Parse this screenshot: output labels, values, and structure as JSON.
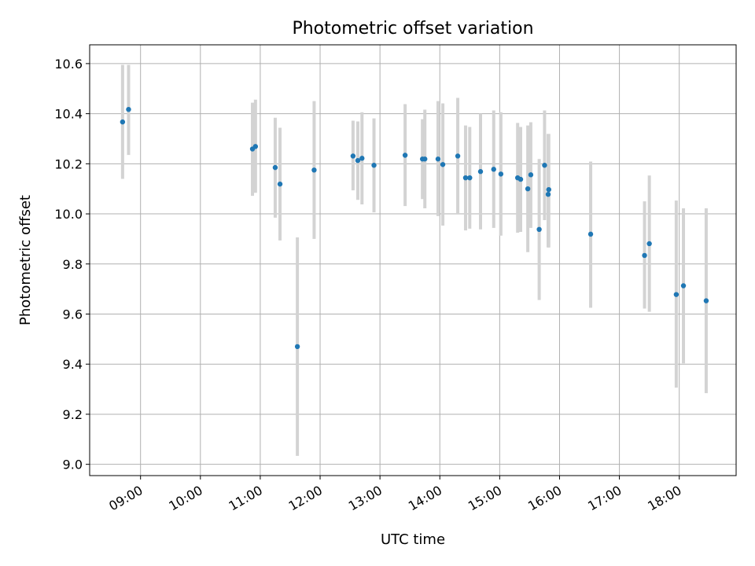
{
  "chart_data": {
    "type": "scatter",
    "title": "Photometric offset variation",
    "xlabel": "UTC time",
    "ylabel": "Photometric offset",
    "x_unit": "hours UTC",
    "xlim": [
      8.15,
      18.95
    ],
    "ylim": [
      8.955,
      10.675
    ],
    "x_ticks": [
      {
        "value": 9,
        "label": "09:00"
      },
      {
        "value": 10,
        "label": "10:00"
      },
      {
        "value": 11,
        "label": "11:00"
      },
      {
        "value": 12,
        "label": "12:00"
      },
      {
        "value": 13,
        "label": "13:00"
      },
      {
        "value": 14,
        "label": "14:00"
      },
      {
        "value": 15,
        "label": "15:00"
      },
      {
        "value": 16,
        "label": "16:00"
      },
      {
        "value": 17,
        "label": "17:00"
      },
      {
        "value": 18,
        "label": "18:00"
      }
    ],
    "y_ticks": [
      {
        "value": 9.0,
        "label": "9.0"
      },
      {
        "value": 9.2,
        "label": "9.2"
      },
      {
        "value": 9.4,
        "label": "9.4"
      },
      {
        "value": 9.6,
        "label": "9.6"
      },
      {
        "value": 9.8,
        "label": "9.8"
      },
      {
        "value": 10.0,
        "label": "10.0"
      },
      {
        "value": 10.2,
        "label": "10.2"
      },
      {
        "value": 10.4,
        "label": "10.4"
      },
      {
        "value": 10.6,
        "label": "10.6"
      }
    ],
    "grid": true,
    "marker_color": "#1f77b4",
    "errorbar_color": "#d3d3d3",
    "points": [
      {
        "x": 8.7,
        "y": 10.367,
        "low": 10.14,
        "high": 10.595
      },
      {
        "x": 8.8,
        "y": 10.417,
        "low": 10.235,
        "high": 10.595
      },
      {
        "x": 10.87,
        "y": 10.259,
        "low": 10.072,
        "high": 10.444
      },
      {
        "x": 10.92,
        "y": 10.269,
        "low": 10.084,
        "high": 10.456
      },
      {
        "x": 11.25,
        "y": 10.185,
        "low": 9.985,
        "high": 10.384
      },
      {
        "x": 11.33,
        "y": 10.119,
        "low": 9.894,
        "high": 10.344
      },
      {
        "x": 11.62,
        "y": 9.47,
        "low": 9.034,
        "high": 9.906
      },
      {
        "x": 11.9,
        "y": 10.175,
        "low": 9.9,
        "high": 10.45
      },
      {
        "x": 12.55,
        "y": 10.231,
        "low": 10.094,
        "high": 10.372
      },
      {
        "x": 12.63,
        "y": 10.213,
        "low": 10.056,
        "high": 10.369
      },
      {
        "x": 12.7,
        "y": 10.222,
        "low": 10.038,
        "high": 10.406
      },
      {
        "x": 12.9,
        "y": 10.194,
        "low": 10.006,
        "high": 10.381
      },
      {
        "x": 13.42,
        "y": 10.234,
        "low": 10.031,
        "high": 10.438
      },
      {
        "x": 13.71,
        "y": 10.219,
        "low": 10.059,
        "high": 10.378
      },
      {
        "x": 13.75,
        "y": 10.219,
        "low": 10.022,
        "high": 10.416
      },
      {
        "x": 13.97,
        "y": 10.219,
        "low": 9.991,
        "high": 10.45
      },
      {
        "x": 14.05,
        "y": 10.197,
        "low": 9.953,
        "high": 10.441
      },
      {
        "x": 14.3,
        "y": 10.231,
        "low": 10.0,
        "high": 10.463
      },
      {
        "x": 14.43,
        "y": 10.144,
        "low": 9.934,
        "high": 10.353
      },
      {
        "x": 14.5,
        "y": 10.144,
        "low": 9.941,
        "high": 10.347
      },
      {
        "x": 14.68,
        "y": 10.169,
        "low": 9.938,
        "high": 10.4
      },
      {
        "x": 14.9,
        "y": 10.178,
        "low": 9.944,
        "high": 10.413
      },
      {
        "x": 15.02,
        "y": 10.159,
        "low": 9.913,
        "high": 10.406
      },
      {
        "x": 15.3,
        "y": 10.144,
        "low": 9.925,
        "high": 10.363
      },
      {
        "x": 15.35,
        "y": 10.138,
        "low": 9.928,
        "high": 10.347
      },
      {
        "x": 15.47,
        "y": 10.1,
        "low": 9.847,
        "high": 10.353
      },
      {
        "x": 15.52,
        "y": 10.156,
        "low": 9.944,
        "high": 10.366
      },
      {
        "x": 15.66,
        "y": 9.938,
        "low": 9.656,
        "high": 10.219
      },
      {
        "x": 15.75,
        "y": 10.194,
        "low": 9.975,
        "high": 10.413
      },
      {
        "x": 15.81,
        "y": 10.078,
        "low": 9.866,
        "high": 10.319
      },
      {
        "x": 15.82,
        "y": 10.097,
        "low": 9.866,
        "high": 10.319
      },
      {
        "x": 16.52,
        "y": 9.919,
        "low": 9.625,
        "high": 10.209
      },
      {
        "x": 17.42,
        "y": 9.834,
        "low": 9.622,
        "high": 10.05
      },
      {
        "x": 17.5,
        "y": 9.881,
        "low": 9.609,
        "high": 10.153
      },
      {
        "x": 17.95,
        "y": 9.678,
        "low": 9.306,
        "high": 10.053
      },
      {
        "x": 18.07,
        "y": 9.713,
        "low": 9.403,
        "high": 10.022
      },
      {
        "x": 18.45,
        "y": 9.653,
        "low": 9.284,
        "high": 10.022
      }
    ]
  }
}
